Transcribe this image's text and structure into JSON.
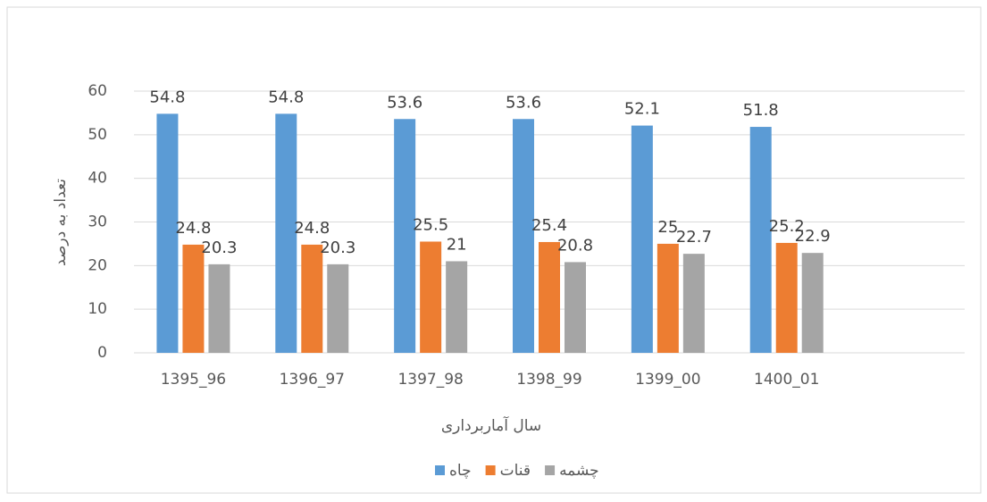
{
  "chart_data": {
    "type": "bar",
    "x_label": "سال آماربرداری",
    "y_label": "تعداد به درصد",
    "categories": [
      "1395_96",
      "1396_97",
      "1397_98",
      "1398_99",
      "1399_00",
      "1400_01",
      null
    ],
    "series": [
      {
        "name": "چاه",
        "color": "#5b9bd5",
        "values": [
          54.8,
          54.8,
          53.6,
          53.6,
          52.1,
          51.8,
          null
        ]
      },
      {
        "name": "قنات",
        "color": "#ed7d31",
        "values": [
          24.8,
          24.8,
          25.5,
          25.4,
          25,
          25.2,
          null
        ]
      },
      {
        "name": "چشمه",
        "color": "#a5a5a5",
        "values": [
          20.3,
          20.3,
          21,
          20.8,
          22.7,
          22.9,
          null
        ]
      }
    ],
    "ylim": [
      0,
      60
    ],
    "yticks": [
      0,
      10,
      20,
      30,
      40,
      50,
      60
    ],
    "grid": true,
    "legend": "bottom"
  }
}
